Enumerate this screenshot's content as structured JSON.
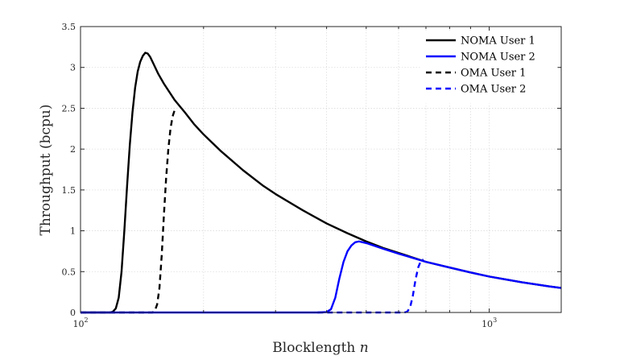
{
  "chart_data": {
    "type": "line",
    "xlabel": "Blocklength",
    "xlabel_var": "n",
    "ylabel": "Throughput (bcpu)",
    "xscale": "log",
    "xlim": [
      100,
      1500
    ],
    "ylim": [
      0,
      3.5
    ],
    "grid": true,
    "legend_position": "top-right",
    "x_ticks": [
      {
        "value": 100,
        "base": "10",
        "exp": "2"
      },
      {
        "value": 1000,
        "base": "10",
        "exp": "3"
      }
    ],
    "y_ticks": [
      {
        "value": 0,
        "label": "0"
      },
      {
        "value": 0.5,
        "label": "0.5"
      },
      {
        "value": 1,
        "label": "1"
      },
      {
        "value": 1.5,
        "label": "1.5"
      },
      {
        "value": 2,
        "label": "2"
      },
      {
        "value": 2.5,
        "label": "2.5"
      },
      {
        "value": 3,
        "label": "3"
      },
      {
        "value": 3.5,
        "label": "3.5"
      }
    ],
    "series": [
      {
        "name": "NOMA User 1",
        "color": "#000000",
        "dash": "solid",
        "points": [
          [
            100,
            0
          ],
          [
            110,
            0
          ],
          [
            118,
            0
          ],
          [
            120,
            0.01
          ],
          [
            122,
            0.05
          ],
          [
            124,
            0.18
          ],
          [
            126,
            0.5
          ],
          [
            128,
            1.0
          ],
          [
            130,
            1.55
          ],
          [
            132,
            2.05
          ],
          [
            134,
            2.45
          ],
          [
            136,
            2.75
          ],
          [
            138,
            2.95
          ],
          [
            140,
            3.07
          ],
          [
            142,
            3.14
          ],
          [
            144,
            3.18
          ],
          [
            146,
            3.17
          ],
          [
            148,
            3.13
          ],
          [
            150,
            3.07
          ],
          [
            155,
            2.92
          ],
          [
            160,
            2.8
          ],
          [
            170,
            2.6
          ],
          [
            180,
            2.45
          ],
          [
            190,
            2.3
          ],
          [
            200,
            2.18
          ],
          [
            220,
            1.98
          ],
          [
            250,
            1.74
          ],
          [
            280,
            1.55
          ],
          [
            300,
            1.45
          ],
          [
            350,
            1.25
          ],
          [
            400,
            1.09
          ],
          [
            450,
            0.97
          ],
          [
            500,
            0.87
          ],
          [
            550,
            0.79
          ],
          [
            600,
            0.73
          ],
          [
            700,
            0.62
          ],
          [
            800,
            0.55
          ],
          [
            900,
            0.49
          ],
          [
            1000,
            0.44
          ],
          [
            1200,
            0.37
          ],
          [
            1400,
            0.32
          ],
          [
            1500,
            0.3
          ]
        ]
      },
      {
        "name": "NOMA User 2",
        "color": "#0000ff",
        "dash": "solid",
        "points": [
          [
            100,
            0
          ],
          [
            200,
            0
          ],
          [
            300,
            0
          ],
          [
            380,
            0
          ],
          [
            400,
            0.005
          ],
          [
            410,
            0.04
          ],
          [
            420,
            0.18
          ],
          [
            430,
            0.42
          ],
          [
            440,
            0.62
          ],
          [
            450,
            0.75
          ],
          [
            460,
            0.82
          ],
          [
            470,
            0.86
          ],
          [
            480,
            0.87
          ],
          [
            490,
            0.86
          ],
          [
            500,
            0.85
          ],
          [
            550,
            0.78
          ],
          [
            600,
            0.72
          ],
          [
            700,
            0.62
          ],
          [
            800,
            0.55
          ],
          [
            900,
            0.49
          ],
          [
            1000,
            0.44
          ],
          [
            1200,
            0.37
          ],
          [
            1400,
            0.32
          ],
          [
            1500,
            0.3
          ]
        ]
      },
      {
        "name": "OMA User 1",
        "color": "#000000",
        "dash": "dashed",
        "points": [
          [
            100,
            0
          ],
          [
            140,
            0
          ],
          [
            150,
            0
          ],
          [
            152,
            0.02
          ],
          [
            154,
            0.1
          ],
          [
            156,
            0.3
          ],
          [
            158,
            0.7
          ],
          [
            160,
            1.2
          ],
          [
            162,
            1.65
          ],
          [
            164,
            2.0
          ],
          [
            166,
            2.25
          ],
          [
            168,
            2.4
          ],
          [
            170,
            2.48
          ],
          [
            172,
            2.5
          ]
        ]
      },
      {
        "name": "OMA User 2",
        "color": "#0000ff",
        "dash": "dashed",
        "points": [
          [
            380,
            0
          ],
          [
            500,
            0
          ],
          [
            600,
            0
          ],
          [
            620,
            0
          ],
          [
            630,
            0.01
          ],
          [
            640,
            0.06
          ],
          [
            650,
            0.2
          ],
          [
            660,
            0.4
          ],
          [
            670,
            0.55
          ],
          [
            680,
            0.63
          ],
          [
            690,
            0.65
          ]
        ]
      }
    ]
  }
}
